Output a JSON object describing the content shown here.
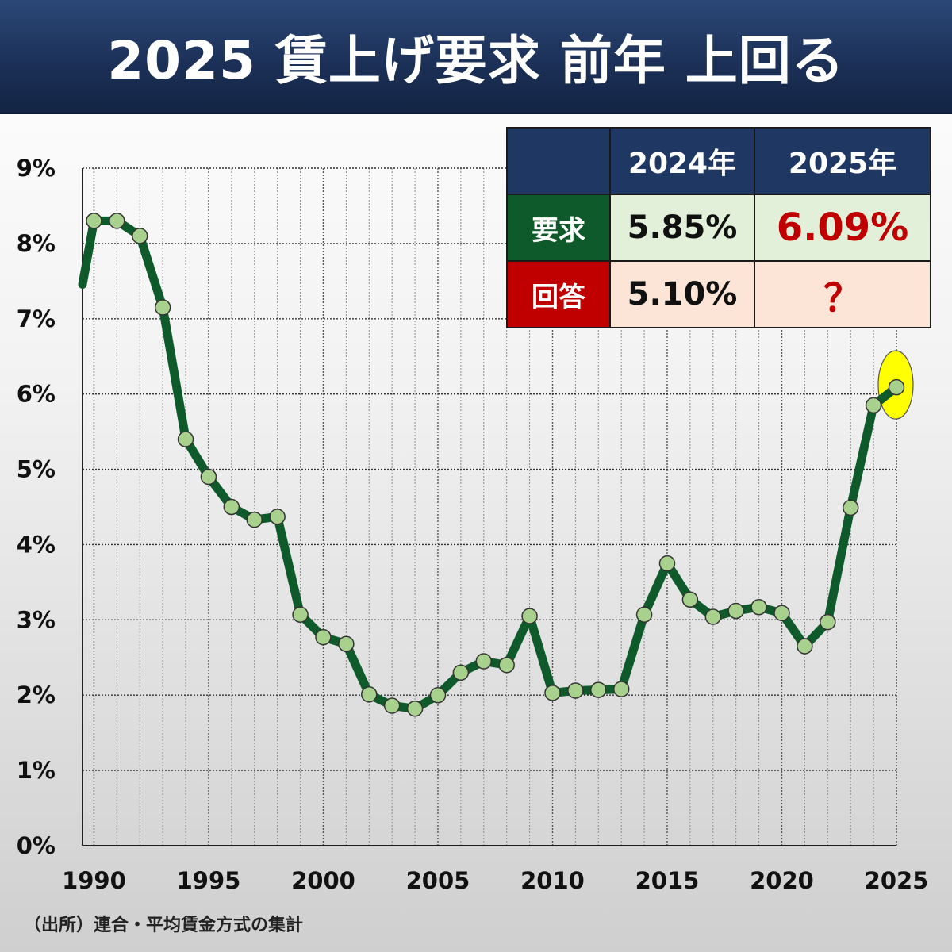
{
  "header": {
    "title": "2025 賃上げ要求 前年 上回る"
  },
  "source": "（出所）連合・平均賃金方式の集計",
  "table": {
    "columns": [
      "2024年",
      "2025年"
    ],
    "rows": [
      {
        "label": "要求",
        "values": [
          "5.85%",
          "6.09%"
        ]
      },
      {
        "label": "回答",
        "values": [
          "5.10%",
          "？"
        ]
      }
    ]
  },
  "colors": {
    "line": "#0e5a2a",
    "marker_fill": "#a9d18e",
    "highlight": "#ffff00",
    "header_bg": "#1f3763",
    "demand_label": "#0f5a2b",
    "answer_label": "#c00000",
    "accent_red_text": "#c00000"
  },
  "chart_data": {
    "type": "line",
    "title": "",
    "xlabel": "",
    "ylabel": "",
    "ylim": [
      0,
      9
    ],
    "xlim": [
      1990,
      2025
    ],
    "y_ticks": [
      "0%",
      "1%",
      "2%",
      "3%",
      "4%",
      "5%",
      "6%",
      "7%",
      "8%",
      "9%"
    ],
    "x_ticks": [
      "1990",
      "1995",
      "2000",
      "2005",
      "2010",
      "2015",
      "2020",
      "2025"
    ],
    "grid": true,
    "highlight_year": 2025,
    "series": [
      {
        "x": [
          1990,
          1991,
          1992,
          1993,
          1994,
          1995,
          1996,
          1997,
          1998,
          1999,
          2000,
          2001,
          2002,
          2003,
          2004,
          2005,
          2006,
          2007,
          2008,
          2009,
          2010,
          2011,
          2012,
          2013,
          2014,
          2015,
          2016,
          2017,
          2018,
          2019,
          2020,
          2021,
          2022,
          2023,
          2024,
          2025
        ],
        "values": [
          8.3,
          8.3,
          8.1,
          7.15,
          5.4,
          4.9,
          4.5,
          4.33,
          4.37,
          3.07,
          2.77,
          2.68,
          2.01,
          1.86,
          1.82,
          2.0,
          2.3,
          2.45,
          2.4,
          3.05,
          2.03,
          2.06,
          2.07,
          2.08,
          3.07,
          3.75,
          3.27,
          3.04,
          3.12,
          3.17,
          3.09,
          2.65,
          2.97,
          4.49,
          5.85,
          6.09
        ]
      }
    ]
  }
}
